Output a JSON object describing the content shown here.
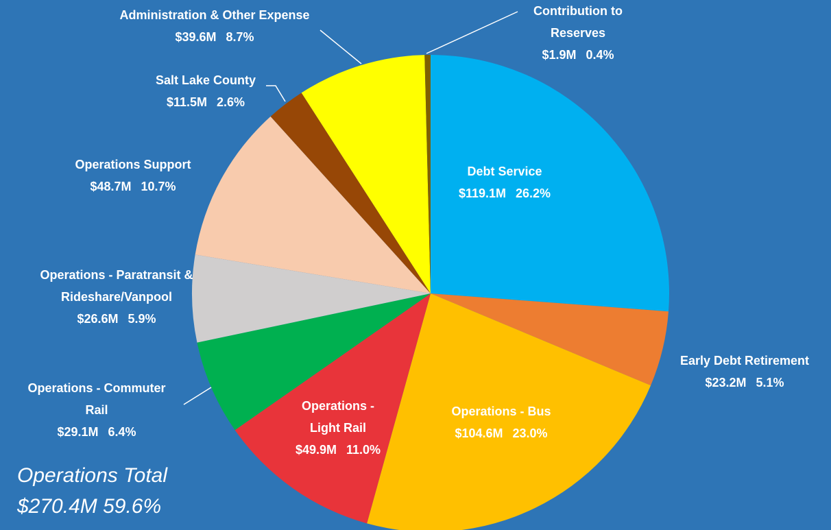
{
  "chart_data": {
    "type": "pie",
    "categories": [
      [
        "Debt Service"
      ],
      [
        "Early Debt Retirement"
      ],
      [
        "Operations - Bus"
      ],
      [
        "Operations -",
        "Light Rail"
      ],
      [
        "Operations - Commuter",
        "Rail"
      ],
      [
        "Operations - Paratransit &",
        "Rideshare/Vanpool"
      ],
      [
        "Operations Support"
      ],
      [
        "Salt Lake County"
      ],
      [
        "Administration & Other Expense"
      ],
      [
        "Contribution to",
        "Reserves"
      ]
    ],
    "values": [
      26.2,
      5.1,
      23.0,
      11.0,
      6.4,
      5.9,
      10.7,
      2.6,
      8.7,
      0.4
    ],
    "value_labels": [
      "26.2%",
      "5.1%",
      "23.0%",
      "11.0%",
      "6.4%",
      "5.9%",
      "10.7%",
      "2.6%",
      "8.7%",
      "0.4%"
    ],
    "amount_labels": [
      "$119.1M",
      "$23.2M",
      "$104.6M",
      "$49.9M",
      "$29.1M",
      "$26.6M",
      "$48.7M",
      "$11.5M",
      "$39.6M",
      "$1.9M"
    ],
    "colors": [
      "#00b0f0",
      "#ed7d31",
      "#ffc000",
      "#e8343a",
      "#00b050",
      "#d0cece",
      "#f8cbad",
      "#974706",
      "#ffff00",
      "#7f6000"
    ],
    "annotations": [
      "Operations Total",
      "$270.4M   59.6%"
    ]
  }
}
